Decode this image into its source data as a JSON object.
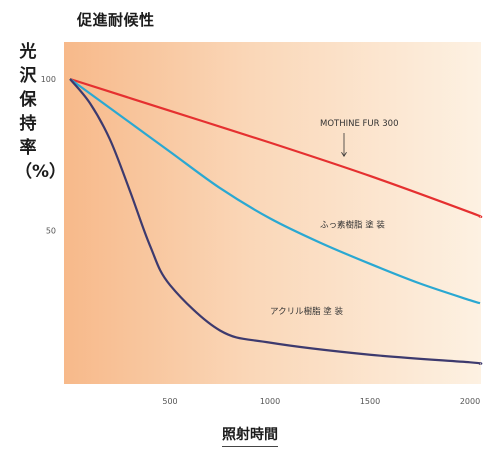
{
  "chart_data": {
    "type": "line",
    "title": "促進耐候性",
    "xlabel": "照射時間",
    "ylabel": "光沢保持率（%）",
    "xlim": [
      0,
      2050
    ],
    "ylim": [
      0,
      100
    ],
    "x_ticks": [
      "500",
      "1000",
      "1500",
      "2000"
    ],
    "y_ticks": [
      "100",
      "50"
    ],
    "series": [
      {
        "name": "MOTHINE FUR 300",
        "color": "#e53030",
        "x": [
          0,
          500,
          1000,
          1500,
          2000,
          2050
        ],
        "y": [
          100,
          89.5,
          79,
          68,
          56,
          54.5
        ]
      },
      {
        "name": "ふっ素樹脂 塗 装",
        "color": "#2aa8d2",
        "x": [
          0,
          250,
          500,
          750,
          1000,
          1250,
          1500,
          1750,
          2000,
          2050
        ],
        "y": [
          100,
          88,
          76,
          64,
          54,
          46,
          39,
          32.5,
          27,
          26
        ]
      },
      {
        "name": "アクリル樹脂 塗 装",
        "color": "#3d3a6e",
        "x": [
          0,
          100,
          200,
          300,
          400,
          500,
          750,
          1000,
          1500,
          2000,
          2050
        ],
        "y": [
          100,
          92,
          80,
          63,
          45,
          32,
          17,
          13,
          9,
          6.5,
          6
        ]
      }
    ],
    "annotations": [
      {
        "text": "MOTHINE FUR 300",
        "series": 0
      },
      {
        "text": "ふっ素樹脂 塗 装",
        "series": 1
      },
      {
        "text": "アクリル樹脂 塗 装",
        "series": 2
      }
    ],
    "background": "orange-gradient",
    "grid": false
  }
}
